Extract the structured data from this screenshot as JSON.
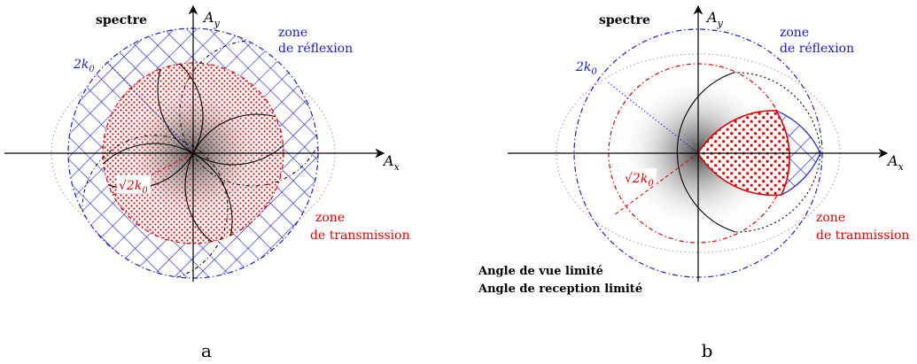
{
  "panels": [
    {
      "id": "a",
      "caption": "a",
      "labels": {
        "spectre": "spectre",
        "ax_y": "A",
        "ax_y_sub": "y",
        "ax_x": "A",
        "ax_x_sub": "x",
        "reflection_line1": "zone",
        "reflection_line2": "de réflexion",
        "two_k0": "2k",
        "two_k0_sub": "0",
        "sqrt2_k0": "√2k",
        "sqrt2_k0_sub": "0",
        "transmission_line1": "zone",
        "transmission_line2": "de transmission"
      }
    },
    {
      "id": "b",
      "caption": "b",
      "labels": {
        "spectre": "spectre",
        "ax_y": "A",
        "ax_y_sub": "y",
        "ax_x": "A",
        "ax_x_sub": "x",
        "reflection_line1": "zone",
        "reflection_line2": "de réflexion",
        "two_k0": "2k",
        "two_k0_sub": "0",
        "sqrt2_k0": "√2k",
        "sqrt2_k0_sub": "0",
        "transmission_line1": "zone",
        "transmission_line2": "de tranmission",
        "note_line1": "Angle de vue limité",
        "note_line2": "Angle de reception limité"
      }
    }
  ],
  "colors": {
    "reflection": "#1010d0",
    "transmission": "#e00000",
    "axis": "#000000",
    "outer_dotted": "#9a9a9a"
  }
}
